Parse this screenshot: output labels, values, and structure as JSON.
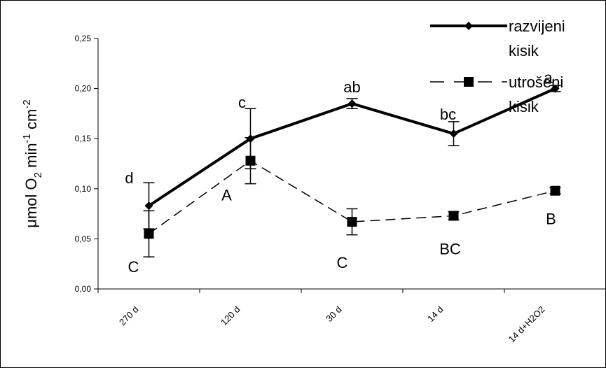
{
  "chart_data": {
    "type": "line",
    "categories": [
      "270 d",
      "120 d",
      "30 d",
      "14 d",
      "14 d+H2O2"
    ],
    "series": [
      {
        "name_lines": [
          "razvijeni",
          "kisik"
        ],
        "values": [
          0.083,
          0.15,
          0.185,
          0.155,
          0.2
        ],
        "errors": [
          0.023,
          0.03,
          0.005,
          0.012,
          0.003
        ],
        "labels": [
          "d",
          "c",
          "ab",
          "bc",
          "a"
        ],
        "style": "solid",
        "marker": "diamond"
      },
      {
        "name_lines": [
          "utrošeni",
          "kisik"
        ],
        "values": [
          0.055,
          0.128,
          0.067,
          0.073,
          0.098
        ],
        "errors": [
          0.023,
          0.023,
          0.013,
          0.004,
          0.003
        ],
        "labels": [
          "C",
          "A",
          "C",
          "BC",
          "B"
        ],
        "style": "dashed",
        "marker": "square"
      }
    ],
    "ylabel": {
      "base": "μmol O",
      "sub": "2",
      "mid": " min",
      "sup1": "-1",
      "tail": " cm",
      "sup2": "-2"
    },
    "ylim": [
      0,
      0.25
    ],
    "yticks": [
      0,
      0.05,
      0.1,
      0.15,
      0.2,
      0.25
    ],
    "ytick_labels": [
      "0,00",
      "0,05",
      "0,10",
      "0,15",
      "0,20",
      "0,25"
    ],
    "grid": false,
    "legend_position": "top-right"
  }
}
